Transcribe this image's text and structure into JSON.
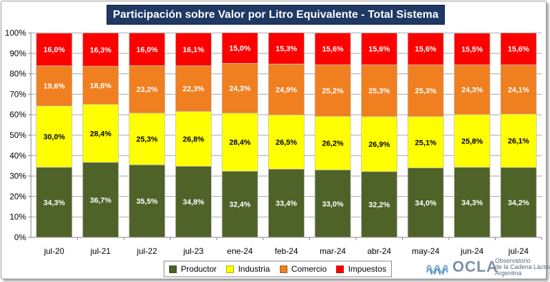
{
  "chart_data": {
    "type": "bar",
    "stacked": true,
    "title": "Participación sobre Valor por Litro Equivalente - Total Sistema",
    "categories": [
      "jul-20",
      "jul-21",
      "jul-22",
      "jul-23",
      "ene-24",
      "feb-24",
      "mar-24",
      "abr-24",
      "may-24",
      "jun-24",
      "jul-24"
    ],
    "series": [
      {
        "name": "Productor",
        "color": "#4f6228",
        "label_color": "#ffffff",
        "values": [
          34.3,
          36.7,
          35.5,
          34.8,
          32.4,
          33.4,
          33.0,
          32.2,
          34.0,
          34.3,
          34.2
        ],
        "labels": [
          "34,3%",
          "36,7%",
          "35,5%",
          "34,8%",
          "32,4%",
          "33,4%",
          "33,0%",
          "32,2%",
          "34,0%",
          "34,3%",
          "34,2%"
        ]
      },
      {
        "name": "Industria",
        "color": "#ffff00",
        "label_color": "#000000",
        "values": [
          30.0,
          28.4,
          25.3,
          26.8,
          28.4,
          26.5,
          26.2,
          26.9,
          25.1,
          25.8,
          26.1
        ],
        "labels": [
          "30,0%",
          "28,4%",
          "25,3%",
          "26,8%",
          "28,4%",
          "26,5%",
          "26,2%",
          "26,9%",
          "25,1%",
          "25,8%",
          "26,1%"
        ]
      },
      {
        "name": "Comercio",
        "color": "#f07f1f",
        "label_color": "#ffffff",
        "values": [
          19.6,
          18.6,
          23.2,
          22.3,
          24.3,
          24.9,
          25.2,
          25.3,
          25.3,
          24.3,
          24.1
        ],
        "labels": [
          "19,6%",
          "18,6%",
          "23,2%",
          "22,3%",
          "24,3%",
          "24,9%",
          "25,2%",
          "25,3%",
          "25,3%",
          "24,3%",
          "24,1%"
        ]
      },
      {
        "name": "Impuestos",
        "color": "#ff0000",
        "label_color": "#ffffff",
        "values": [
          16.0,
          16.3,
          16.0,
          16.1,
          15.0,
          15.3,
          15.6,
          15.6,
          15.6,
          15.5,
          15.6
        ],
        "labels": [
          "16,0%",
          "16,3%",
          "16,0%",
          "16,1%",
          "15,0%",
          "15,3%",
          "15,6%",
          "15,6%",
          "15,6%",
          "15,5%",
          "15,6%"
        ]
      }
    ],
    "ylim": [
      0,
      100
    ],
    "yticks": [
      "0%",
      "10%",
      "20%",
      "30%",
      "40%",
      "50%",
      "60%",
      "70%",
      "80%",
      "90%",
      "100%"
    ],
    "grid": true,
    "legend": "bottom"
  },
  "logo": {
    "name": "OCLA",
    "line1": "Observatorio",
    "line2": "de la Cadena Láctea",
    "line3": "Argentina"
  }
}
